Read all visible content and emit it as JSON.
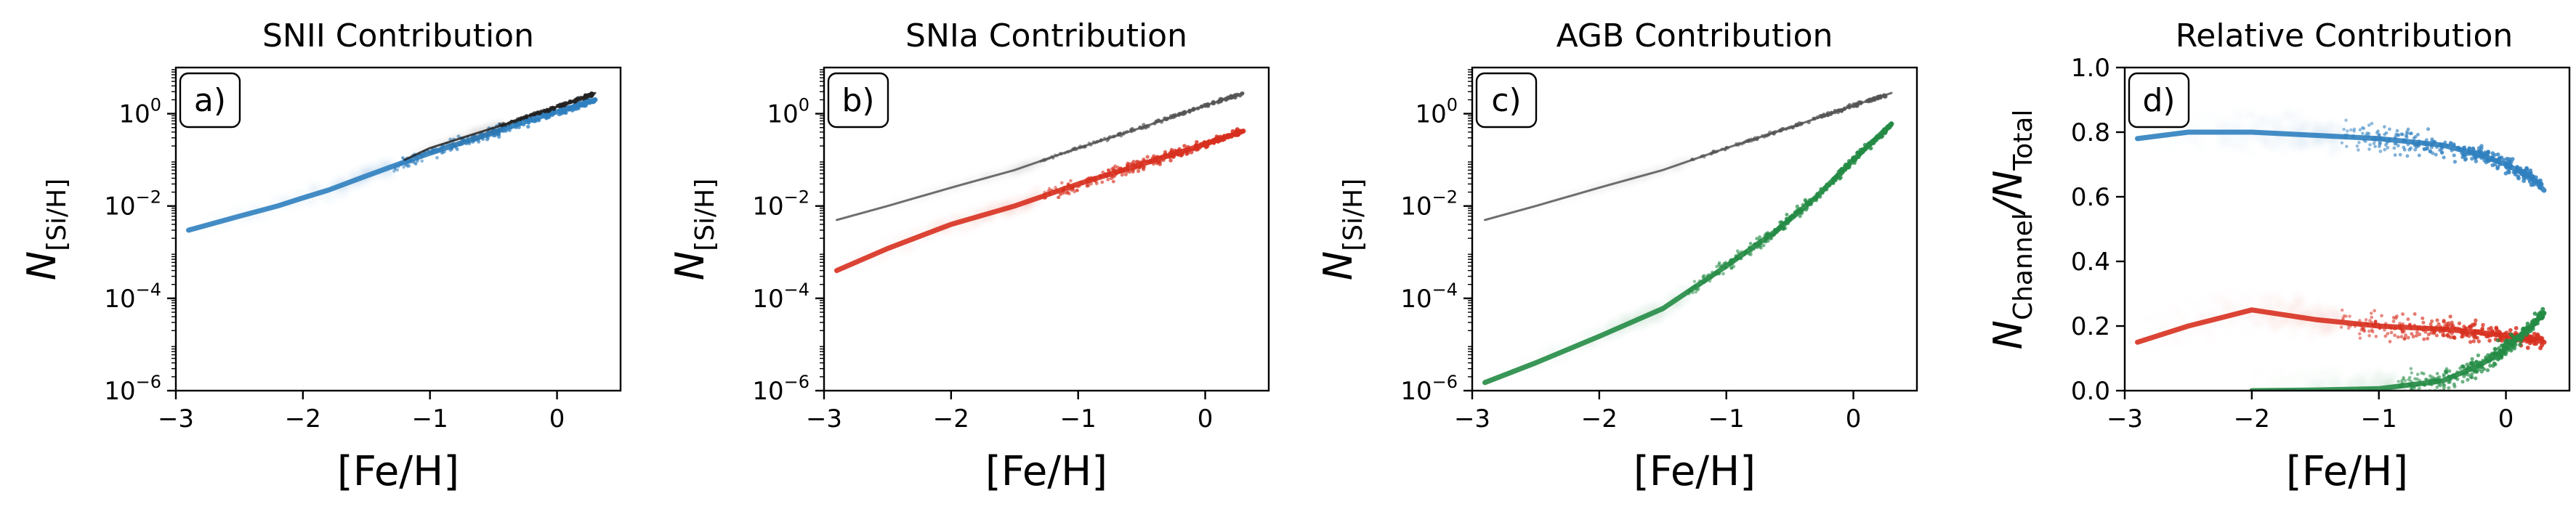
{
  "chart_data": [
    {
      "type": "scatter",
      "panel_label": "a)",
      "title": "SNII Contribution",
      "xlabel": "[Fe/H]",
      "ylabel": "N[Si/H]",
      "ylabel_main": "N",
      "ylabel_sub": "[Si/H]",
      "yscale": "log",
      "xlim": [
        -3,
        0.5
      ],
      "ylim": [
        1e-06,
        10
      ],
      "xticks": [
        -3,
        -2,
        -1,
        0
      ],
      "xtick_labels": [
        "−3",
        "−2",
        "−1",
        "0"
      ],
      "ytick_exponents": [
        0,
        -2,
        -4,
        -6
      ],
      "ytick_base": "10",
      "series": [
        {
          "role": "channel",
          "color": "#2f7fbf",
          "x": [
            -2.9,
            -2.5,
            -2.2,
            -2.0,
            -1.8,
            -1.5,
            -1.2,
            -1.0,
            -0.7,
            -0.4,
            -0.2,
            0.0,
            0.2,
            0.3
          ],
          "y": [
            0.003,
            0.006,
            0.01,
            0.015,
            0.022,
            0.045,
            0.09,
            0.14,
            0.26,
            0.48,
            0.75,
            1.1,
            1.6,
            2.0
          ]
        },
        {
          "role": "total",
          "color": "#222222",
          "x": [
            -1.2,
            -1.0,
            -0.7,
            -0.4,
            -0.2,
            0.0,
            0.2,
            0.3
          ],
          "y": [
            0.1,
            0.18,
            0.33,
            0.6,
            0.95,
            1.4,
            2.2,
            2.8
          ]
        }
      ]
    },
    {
      "type": "scatter",
      "panel_label": "b)",
      "title": "SNIa Contribution",
      "xlabel": "[Fe/H]",
      "ylabel": "N[Si/H]",
      "ylabel_main": "N",
      "ylabel_sub": "[Si/H]",
      "yscale": "log",
      "xlim": [
        -3,
        0.5
      ],
      "ylim": [
        1e-06,
        10
      ],
      "xticks": [
        -3,
        -2,
        -1,
        0
      ],
      "xtick_labels": [
        "−3",
        "−2",
        "−1",
        "0"
      ],
      "ytick_exponents": [
        0,
        -2,
        -4,
        -6
      ],
      "ytick_base": "10",
      "series": [
        {
          "role": "total",
          "color": "#555555",
          "x": [
            -2.9,
            -2.5,
            -2.0,
            -1.5,
            -1.0,
            -0.5,
            0.0,
            0.3
          ],
          "y": [
            0.005,
            0.01,
            0.025,
            0.06,
            0.18,
            0.5,
            1.5,
            2.8
          ]
        },
        {
          "role": "channel",
          "color": "#d7301f",
          "x": [
            -2.9,
            -2.5,
            -2.0,
            -1.5,
            -1.0,
            -0.5,
            0.0,
            0.3
          ],
          "y": [
            0.0004,
            0.0012,
            0.004,
            0.01,
            0.03,
            0.08,
            0.22,
            0.42
          ]
        }
      ]
    },
    {
      "type": "scatter",
      "panel_label": "c)",
      "title": "AGB Contribution",
      "xlabel": "[Fe/H]",
      "ylabel": "N[Si/H]",
      "ylabel_main": "N",
      "ylabel_sub": "[Si/H]",
      "yscale": "log",
      "xlim": [
        -3,
        0.5
      ],
      "ylim": [
        1e-06,
        10
      ],
      "xticks": [
        -3,
        -2,
        -1,
        0
      ],
      "xtick_labels": [
        "−3",
        "−2",
        "−1",
        "0"
      ],
      "ytick_exponents": [
        0,
        -2,
        -4,
        -6
      ],
      "ytick_base": "10",
      "series": [
        {
          "role": "total",
          "color": "#555555",
          "x": [
            -2.9,
            -2.5,
            -2.0,
            -1.5,
            -1.0,
            -0.5,
            0.0,
            0.3
          ],
          "y": [
            0.005,
            0.01,
            0.025,
            0.06,
            0.18,
            0.5,
            1.5,
            2.8
          ]
        },
        {
          "role": "channel",
          "color": "#238b45",
          "x": [
            -2.9,
            -2.5,
            -2.0,
            -1.5,
            -1.0,
            -0.6,
            -0.3,
            0.0,
            0.3
          ],
          "y": [
            1.5e-06,
            4e-06,
            1.5e-05,
            6e-05,
            0.0005,
            0.003,
            0.015,
            0.1,
            0.6
          ]
        }
      ]
    },
    {
      "type": "scatter",
      "panel_label": "d)",
      "title": "Relative Contribution",
      "xlabel": "[Fe/H]",
      "ylabel": "NChannel/NTotal",
      "ylabel_main": "N",
      "ylabel_sub": "Channel",
      "ylabel_main2": "/N",
      "ylabel_sub2": "Total",
      "yscale": "linear",
      "xlim": [
        -3,
        0.5
      ],
      "ylim": [
        0,
        1
      ],
      "xticks": [
        -3,
        -2,
        -1,
        0
      ],
      "xtick_labels": [
        "−3",
        "−2",
        "−1",
        "0"
      ],
      "yticks": [
        0.0,
        0.2,
        0.4,
        0.6,
        0.8,
        1.0
      ],
      "ytick_labels": [
        "0.0",
        "0.2",
        "0.4",
        "0.6",
        "0.8",
        "1.0"
      ],
      "series": [
        {
          "role": "SNII",
          "color": "#2f7fbf",
          "x": [
            -2.9,
            -2.5,
            -2.0,
            -1.5,
            -1.0,
            -0.5,
            -0.2,
            0.0,
            0.2,
            0.3
          ],
          "y": [
            0.78,
            0.8,
            0.8,
            0.79,
            0.78,
            0.76,
            0.73,
            0.7,
            0.66,
            0.62
          ]
        },
        {
          "role": "SNIa",
          "color": "#d7301f",
          "x": [
            -2.9,
            -2.5,
            -2.0,
            -1.5,
            -1.0,
            -0.5,
            -0.2,
            0.0,
            0.2,
            0.3
          ],
          "y": [
            0.15,
            0.2,
            0.25,
            0.22,
            0.2,
            0.19,
            0.18,
            0.17,
            0.16,
            0.15
          ]
        },
        {
          "role": "AGB",
          "color": "#238b45",
          "x": [
            -2.0,
            -1.5,
            -1.0,
            -0.5,
            -0.2,
            0.0,
            0.2,
            0.3
          ],
          "y": [
            0.0,
            0.002,
            0.006,
            0.03,
            0.08,
            0.13,
            0.2,
            0.24
          ]
        }
      ]
    }
  ]
}
